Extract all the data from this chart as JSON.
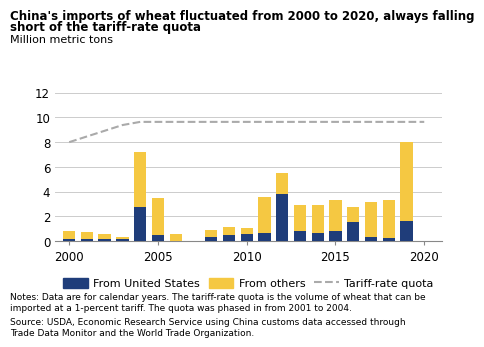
{
  "years": [
    2000,
    2001,
    2002,
    2003,
    2004,
    2005,
    2006,
    2007,
    2008,
    2009,
    2010,
    2011,
    2012,
    2013,
    2014,
    2015,
    2016,
    2017,
    2018,
    2019,
    2020
  ],
  "from_us": [
    0.15,
    0.2,
    0.15,
    0.2,
    2.75,
    0.5,
    0.05,
    0.0,
    0.35,
    0.5,
    0.55,
    0.65,
    3.8,
    0.85,
    0.65,
    0.85,
    1.55,
    0.35,
    0.25,
    1.6,
    0.0
  ],
  "from_others": [
    0.65,
    0.55,
    0.45,
    0.15,
    4.45,
    3.0,
    0.5,
    0.0,
    0.55,
    0.65,
    0.5,
    2.95,
    1.75,
    2.1,
    2.25,
    2.45,
    1.2,
    2.8,
    3.1,
    6.45,
    0.0
  ],
  "quota": [
    8.0,
    8.46,
    8.92,
    9.38,
    9.636,
    9.636,
    9.636,
    9.636,
    9.636,
    9.636,
    9.636,
    9.636,
    9.636,
    9.636,
    9.636,
    9.636,
    9.636,
    9.636,
    9.636,
    9.636,
    9.636
  ],
  "us_color": "#1f3d7a",
  "others_color": "#f5c842",
  "quota_color": "#aaaaaa",
  "bar_width": 0.7,
  "ylim": [
    0,
    12
  ],
  "yticks": [
    0,
    2,
    4,
    6,
    8,
    10,
    12
  ],
  "title_line1": "China's imports of wheat fluctuated from 2000 to 2020, always falling",
  "title_line2": "short of the tariff-rate quota",
  "ylabel": "Million metric tons",
  "notes_line1": "Notes: Data are for calendar years. The tariff-rate quota is the volume of wheat that can be",
  "notes_line2": "imported at a 1-percent tariff. The quota was phased in from 2001 to 2004.",
  "source_line1": "Source: USDA, Economic Research Service using China customs data accessed through",
  "source_line2": "Trade Data Monitor and the World Trade Organization."
}
